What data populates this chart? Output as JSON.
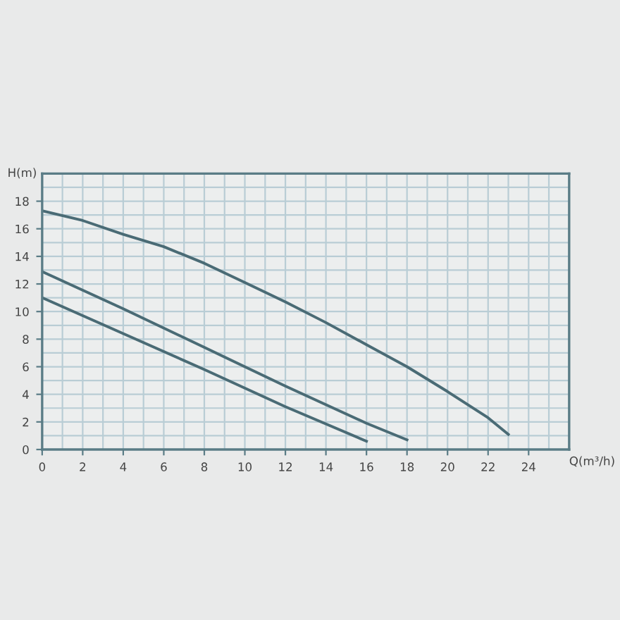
{
  "chart_data": {
    "type": "line",
    "xlabel": "Q(m³/h)",
    "ylabel": "H(m)",
    "series": [
      {
        "color": "#4a6b75",
        "x": [
          0,
          2,
          4,
          6,
          8,
          10,
          12,
          14,
          16,
          18,
          20,
          22,
          23
        ],
        "values": [
          17.3,
          16.6,
          15.6,
          14.7,
          13.5,
          12.1,
          10.7,
          9.2,
          7.6,
          6.0,
          4.2,
          2.3,
          1.1
        ]
      },
      {
        "color": "#4a6b75",
        "x": [
          0,
          4,
          8,
          12,
          16,
          18
        ],
        "values": [
          12.9,
          10.2,
          7.4,
          4.6,
          1.9,
          0.7
        ]
      },
      {
        "color": "#4a6b75",
        "x": [
          0,
          4,
          8,
          12,
          16
        ],
        "values": [
          11.0,
          8.4,
          5.8,
          3.1,
          0.6
        ]
      }
    ],
    "xlim": [
      0,
      26
    ],
    "ylim": [
      0,
      20
    ],
    "xticks": [
      0,
      2,
      4,
      6,
      8,
      10,
      12,
      14,
      16,
      18,
      20,
      22,
      24
    ],
    "yticks": [
      0,
      2,
      4,
      6,
      8,
      10,
      12,
      14,
      16,
      18
    ],
    "grid": true,
    "marker": "none",
    "line_style": "solid"
  }
}
